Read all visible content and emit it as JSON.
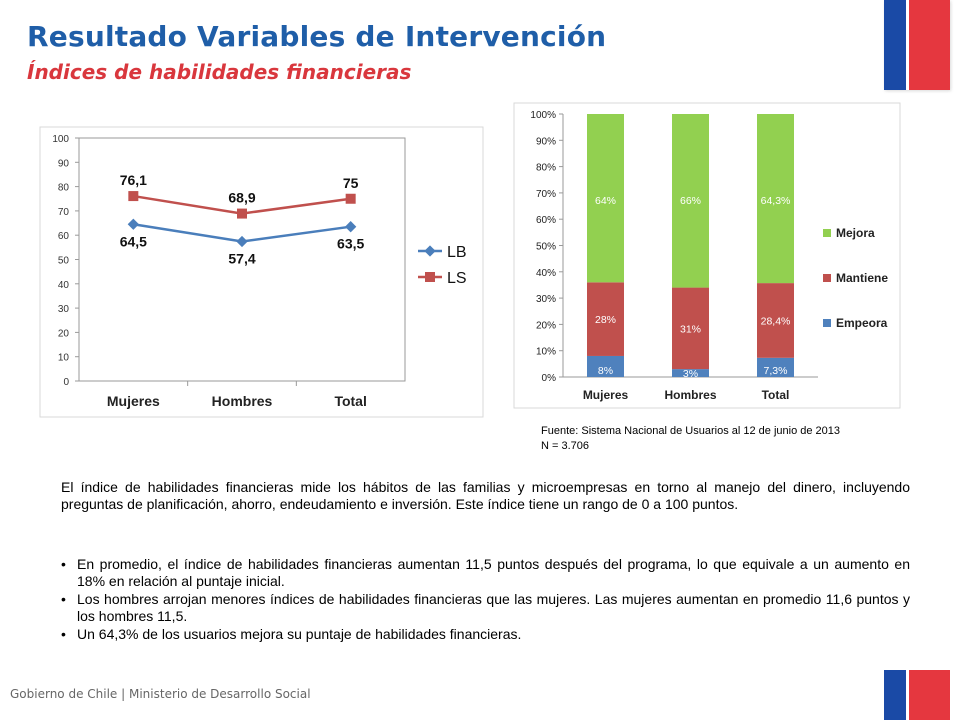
{
  "header": {
    "title": "Resultado Variables de Intervención",
    "subtitle": "Índices de habilidades financieras"
  },
  "colors": {
    "title_blue": "#1f5ea8",
    "subtitle_red": "#d9373d",
    "lb_series": "#4a7ebb",
    "ls_series": "#c0504d",
    "mejora": "#92d050",
    "mantiene": "#c0504d",
    "empeora": "#4f81bd"
  },
  "chart_data": [
    {
      "type": "line",
      "categories": [
        "Mujeres",
        "Hombres",
        "Total"
      ],
      "series": [
        {
          "name": "LB",
          "values": [
            64.5,
            57.4,
            63.5
          ],
          "labels": [
            "64,5",
            "57,4",
            "63,5"
          ]
        },
        {
          "name": "LS",
          "values": [
            76.1,
            68.9,
            75
          ],
          "labels": [
            "76,1",
            "68,9",
            "75"
          ]
        }
      ],
      "ylim": [
        0,
        100
      ],
      "yticks": [
        "0",
        "10",
        "20",
        "30",
        "40",
        "50",
        "60",
        "70",
        "80",
        "90",
        "100"
      ],
      "grid": false,
      "legend": "right"
    },
    {
      "type": "bar",
      "stacked": true,
      "percent": true,
      "categories": [
        "Mujeres",
        "Hombres",
        "Total"
      ],
      "series": [
        {
          "name": "Empeora",
          "values": [
            8,
            3,
            7.3
          ],
          "labels": [
            "8%",
            "3%",
            "7,3%"
          ]
        },
        {
          "name": "Mantiene",
          "values": [
            28,
            31,
            28.4
          ],
          "labels": [
            "28%",
            "31%",
            "28,4%"
          ]
        },
        {
          "name": "Mejora",
          "values": [
            64,
            66,
            64.3
          ],
          "labels": [
            "64%",
            "66%",
            "64,3%"
          ]
        }
      ],
      "ylim": [
        0,
        100
      ],
      "yticks": [
        "0%",
        "10%",
        "20%",
        "30%",
        "40%",
        "50%",
        "60%",
        "70%",
        "80%",
        "90%",
        "100%"
      ],
      "grid": false,
      "legend": "right"
    }
  ],
  "source": {
    "line1": "Fuente: Sistema Nacional de Usuarios al 12 de junio de 2013",
    "line2": "N = 3.706"
  },
  "body": {
    "paragraph": "El índice de habilidades financieras mide los hábitos de las familias y microempresas en torno al manejo del dinero, incluyendo preguntas de planificación, ahorro, endeudamiento e inversión. Este índice tiene un rango de 0 a 100 puntos.",
    "bullets": [
      "En promedio, el índice de habilidades financieras aumentan 11,5 puntos después del programa, lo que equivale a un aumento en 18% en relación al puntaje inicial.",
      "Los hombres arrojan menores índices de habilidades financieras que las mujeres. Las mujeres aumentan en promedio 11,6 puntos y los hombres 11,5.",
      "Un 64,3% de los usuarios mejora su puntaje de habilidades financieras."
    ]
  },
  "footer": {
    "text": "Gobierno de Chile | Ministerio de Desarrollo Social"
  }
}
